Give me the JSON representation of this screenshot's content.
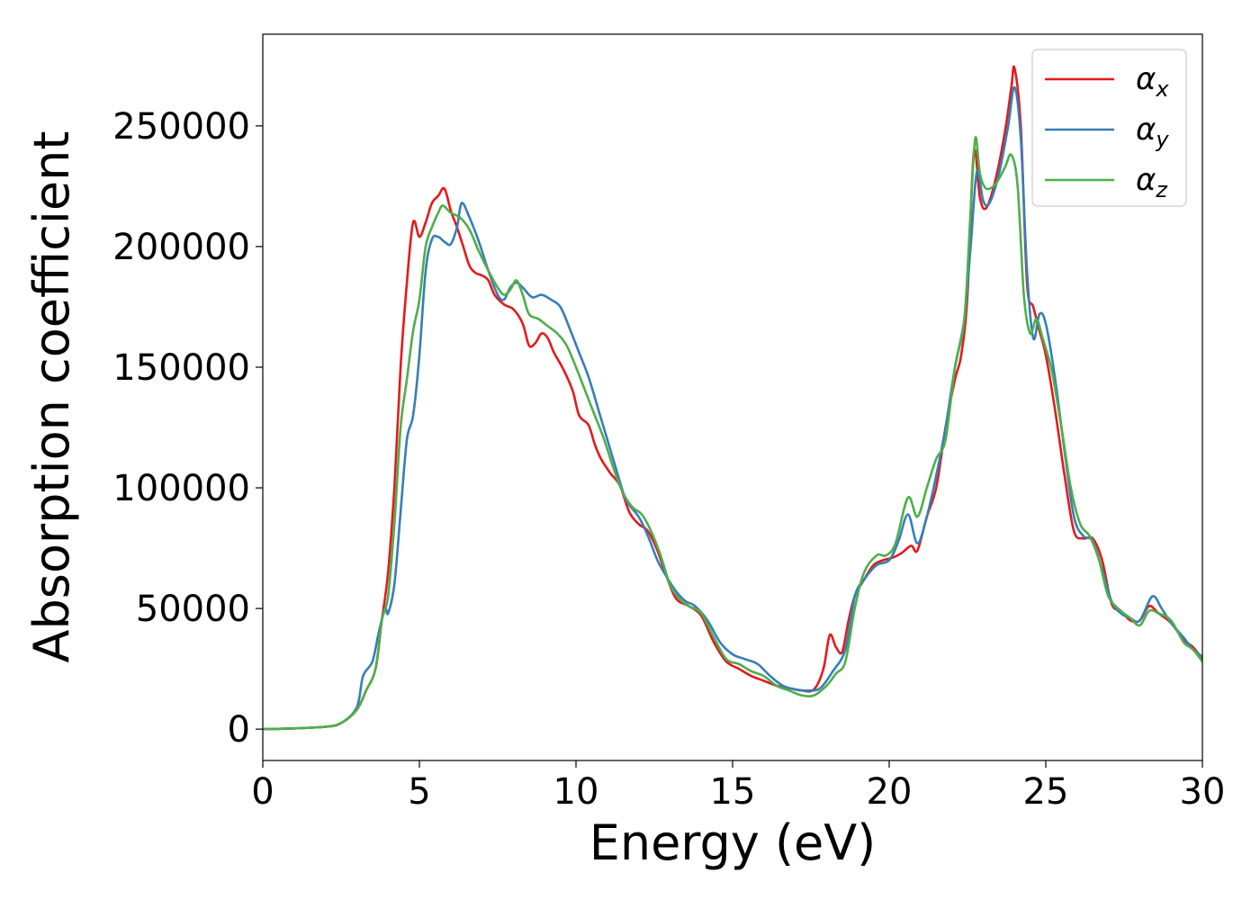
{
  "chart_data": {
    "type": "line",
    "xlabel": "Energy (eV)",
    "ylabel": "Absorption coefficient",
    "xlim": [
      0,
      30
    ],
    "ylim": [
      -13000,
      288000
    ],
    "xticks": [
      0,
      5,
      10,
      15,
      20,
      25,
      30
    ],
    "yticks": [
      0,
      50000,
      100000,
      150000,
      200000,
      250000
    ],
    "grid": false,
    "legend": "top-right",
    "series": [
      {
        "name": "α",
        "sub": "x",
        "color": "#e41a1c",
        "points": [
          [
            0,
            0
          ],
          [
            1,
            300
          ],
          [
            2,
            1000
          ],
          [
            2.5,
            2500
          ],
          [
            3,
            8000
          ],
          [
            3.3,
            16000
          ],
          [
            3.6,
            25000
          ],
          [
            3.8,
            45000
          ],
          [
            4.0,
            65000
          ],
          [
            4.2,
            100000
          ],
          [
            4.4,
            150000
          ],
          [
            4.6,
            185000
          ],
          [
            4.8,
            210000
          ],
          [
            5.0,
            204000
          ],
          [
            5.2,
            210000
          ],
          [
            5.4,
            218000
          ],
          [
            5.6,
            221000
          ],
          [
            5.8,
            224000
          ],
          [
            6.0,
            215000
          ],
          [
            6.2,
            208000
          ],
          [
            6.4,
            200000
          ],
          [
            6.6,
            192000
          ],
          [
            6.8,
            189000
          ],
          [
            7.0,
            188000
          ],
          [
            7.2,
            186000
          ],
          [
            7.4,
            180000
          ],
          [
            7.7,
            176000
          ],
          [
            8.0,
            174000
          ],
          [
            8.3,
            168000
          ],
          [
            8.5,
            159000
          ],
          [
            8.7,
            160000
          ],
          [
            8.9,
            164000
          ],
          [
            9.1,
            162000
          ],
          [
            9.3,
            156000
          ],
          [
            9.6,
            149000
          ],
          [
            9.9,
            140000
          ],
          [
            10.1,
            130000
          ],
          [
            10.4,
            126000
          ],
          [
            10.6,
            118000
          ],
          [
            10.8,
            112000
          ],
          [
            11.1,
            106000
          ],
          [
            11.4,
            101000
          ],
          [
            11.7,
            90000
          ],
          [
            12.0,
            85000
          ],
          [
            12.3,
            82000
          ],
          [
            12.6,
            74000
          ],
          [
            12.9,
            63000
          ],
          [
            13.2,
            54000
          ],
          [
            13.6,
            51000
          ],
          [
            14.0,
            47000
          ],
          [
            14.4,
            36000
          ],
          [
            14.8,
            28000
          ],
          [
            15.2,
            25000
          ],
          [
            15.6,
            22000
          ],
          [
            16.0,
            20000
          ],
          [
            16.4,
            18000
          ],
          [
            16.8,
            17000
          ],
          [
            17.2,
            16000
          ],
          [
            17.6,
            16500
          ],
          [
            17.9,
            25000
          ],
          [
            18.1,
            39000
          ],
          [
            18.3,
            34000
          ],
          [
            18.5,
            32000
          ],
          [
            18.7,
            45000
          ],
          [
            18.9,
            55000
          ],
          [
            19.2,
            62000
          ],
          [
            19.5,
            68000
          ],
          [
            19.8,
            70000
          ],
          [
            20.1,
            71000
          ],
          [
            20.4,
            73000
          ],
          [
            20.7,
            76000
          ],
          [
            20.9,
            74000
          ],
          [
            21.2,
            88000
          ],
          [
            21.5,
            100000
          ],
          [
            21.8,
            125000
          ],
          [
            22.1,
            145000
          ],
          [
            22.3,
            155000
          ],
          [
            22.5,
            180000
          ],
          [
            22.7,
            239000
          ],
          [
            22.9,
            220000
          ],
          [
            23.1,
            216000
          ],
          [
            23.4,
            228000
          ],
          [
            23.7,
            248000
          ],
          [
            23.9,
            266000
          ],
          [
            24.0,
            274000
          ],
          [
            24.2,
            250000
          ],
          [
            24.4,
            185000
          ],
          [
            24.6,
            175000
          ],
          [
            24.8,
            165000
          ],
          [
            25.0,
            155000
          ],
          [
            25.3,
            132000
          ],
          [
            25.6,
            105000
          ],
          [
            25.9,
            82000
          ],
          [
            26.2,
            79000
          ],
          [
            26.5,
            79000
          ],
          [
            26.8,
            70000
          ],
          [
            27.1,
            52000
          ],
          [
            27.4,
            49000
          ],
          [
            27.7,
            45000
          ],
          [
            28.0,
            45000
          ],
          [
            28.3,
            51000
          ],
          [
            28.6,
            48000
          ],
          [
            29.0,
            44000
          ],
          [
            29.4,
            37000
          ],
          [
            29.7,
            34000
          ],
          [
            30,
            29000
          ]
        ]
      },
      {
        "name": "α",
        "sub": "y",
        "color": "#377eb8",
        "points": [
          [
            0,
            0
          ],
          [
            1,
            300
          ],
          [
            2,
            1000
          ],
          [
            2.5,
            2500
          ],
          [
            3,
            9000
          ],
          [
            3.2,
            22000
          ],
          [
            3.5,
            28000
          ],
          [
            3.7,
            40000
          ],
          [
            3.9,
            50000
          ],
          [
            4.0,
            48000
          ],
          [
            4.2,
            60000
          ],
          [
            4.4,
            90000
          ],
          [
            4.6,
            120000
          ],
          [
            4.8,
            130000
          ],
          [
            5.0,
            155000
          ],
          [
            5.2,
            190000
          ],
          [
            5.4,
            203000
          ],
          [
            5.6,
            204000
          ],
          [
            5.8,
            202000
          ],
          [
            6.0,
            201000
          ],
          [
            6.2,
            208000
          ],
          [
            6.35,
            218000
          ],
          [
            6.6,
            212000
          ],
          [
            6.9,
            202000
          ],
          [
            7.2,
            190000
          ],
          [
            7.5,
            180000
          ],
          [
            7.7,
            178000
          ],
          [
            7.9,
            183000
          ],
          [
            8.1,
            185000
          ],
          [
            8.3,
            183000
          ],
          [
            8.6,
            179000
          ],
          [
            8.9,
            180000
          ],
          [
            9.2,
            178000
          ],
          [
            9.5,
            175000
          ],
          [
            9.8,
            166000
          ],
          [
            10.1,
            156000
          ],
          [
            10.4,
            146000
          ],
          [
            10.7,
            133000
          ],
          [
            11.0,
            120000
          ],
          [
            11.3,
            107000
          ],
          [
            11.6,
            95000
          ],
          [
            12.0,
            88000
          ],
          [
            12.3,
            80000
          ],
          [
            12.6,
            70000
          ],
          [
            12.9,
            63000
          ],
          [
            13.2,
            57000
          ],
          [
            13.5,
            53000
          ],
          [
            13.8,
            51000
          ],
          [
            14.2,
            45000
          ],
          [
            14.6,
            36000
          ],
          [
            15.0,
            31000
          ],
          [
            15.4,
            29000
          ],
          [
            15.8,
            27000
          ],
          [
            16.2,
            22000
          ],
          [
            16.6,
            18000
          ],
          [
            17.0,
            16500
          ],
          [
            17.4,
            16000
          ],
          [
            17.8,
            17000
          ],
          [
            18.2,
            24000
          ],
          [
            18.6,
            33000
          ],
          [
            18.9,
            55000
          ],
          [
            19.2,
            62000
          ],
          [
            19.6,
            68000
          ],
          [
            20.0,
            70000
          ],
          [
            20.3,
            78000
          ],
          [
            20.6,
            89000
          ],
          [
            20.9,
            77000
          ],
          [
            21.2,
            88000
          ],
          [
            21.5,
            105000
          ],
          [
            21.8,
            125000
          ],
          [
            22.1,
            150000
          ],
          [
            22.4,
            170000
          ],
          [
            22.6,
            200000
          ],
          [
            22.8,
            231000
          ],
          [
            23.0,
            219000
          ],
          [
            23.2,
            218000
          ],
          [
            23.5,
            230000
          ],
          [
            23.8,
            250000
          ],
          [
            24.0,
            266000
          ],
          [
            24.2,
            245000
          ],
          [
            24.4,
            190000
          ],
          [
            24.6,
            162000
          ],
          [
            24.8,
            172000
          ],
          [
            25.0,
            168000
          ],
          [
            25.3,
            145000
          ],
          [
            25.6,
            115000
          ],
          [
            25.9,
            88000
          ],
          [
            26.2,
            80000
          ],
          [
            26.5,
            78000
          ],
          [
            26.8,
            66000
          ],
          [
            27.1,
            53000
          ],
          [
            27.4,
            48000
          ],
          [
            27.7,
            46000
          ],
          [
            28.0,
            45000
          ],
          [
            28.4,
            55000
          ],
          [
            28.7,
            50000
          ],
          [
            29.0,
            44000
          ],
          [
            29.4,
            38000
          ],
          [
            29.7,
            33000
          ],
          [
            30,
            30000
          ]
        ]
      },
      {
        "name": "α",
        "sub": "z",
        "color": "#4daf4a",
        "points": [
          [
            0,
            0
          ],
          [
            1,
            300
          ],
          [
            2,
            1000
          ],
          [
            2.5,
            2500
          ],
          [
            3,
            8000
          ],
          [
            3.3,
            16000
          ],
          [
            3.6,
            25000
          ],
          [
            3.8,
            45000
          ],
          [
            4.0,
            55000
          ],
          [
            4.2,
            85000
          ],
          [
            4.4,
            125000
          ],
          [
            4.6,
            145000
          ],
          [
            4.8,
            165000
          ],
          [
            5.0,
            178000
          ],
          [
            5.2,
            200000
          ],
          [
            5.4,
            208000
          ],
          [
            5.6,
            214000
          ],
          [
            5.75,
            217000
          ],
          [
            6.0,
            214000
          ],
          [
            6.3,
            212000
          ],
          [
            6.6,
            207000
          ],
          [
            6.9,
            198000
          ],
          [
            7.2,
            190000
          ],
          [
            7.5,
            183000
          ],
          [
            7.7,
            180000
          ],
          [
            7.9,
            182000
          ],
          [
            8.1,
            186000
          ],
          [
            8.3,
            180000
          ],
          [
            8.5,
            172000
          ],
          [
            8.8,
            170000
          ],
          [
            9.1,
            167000
          ],
          [
            9.4,
            164000
          ],
          [
            9.7,
            159000
          ],
          [
            10.0,
            150000
          ],
          [
            10.3,
            140000
          ],
          [
            10.6,
            130000
          ],
          [
            10.9,
            120000
          ],
          [
            11.2,
            108000
          ],
          [
            11.5,
            98000
          ],
          [
            11.8,
            92000
          ],
          [
            12.1,
            89000
          ],
          [
            12.4,
            82000
          ],
          [
            12.7,
            72000
          ],
          [
            13.0,
            60000
          ],
          [
            13.3,
            54000
          ],
          [
            13.6,
            51000
          ],
          [
            14.0,
            48000
          ],
          [
            14.4,
            38000
          ],
          [
            14.8,
            29000
          ],
          [
            15.2,
            27000
          ],
          [
            15.6,
            24000
          ],
          [
            16.0,
            22000
          ],
          [
            16.4,
            18000
          ],
          [
            16.8,
            16000
          ],
          [
            17.2,
            14000
          ],
          [
            17.6,
            14000
          ],
          [
            18.0,
            18000
          ],
          [
            18.3,
            23000
          ],
          [
            18.6,
            28000
          ],
          [
            18.9,
            50000
          ],
          [
            19.2,
            65000
          ],
          [
            19.6,
            72000
          ],
          [
            19.9,
            72000
          ],
          [
            20.2,
            77000
          ],
          [
            20.6,
            96000
          ],
          [
            20.9,
            88000
          ],
          [
            21.2,
            100000
          ],
          [
            21.5,
            112000
          ],
          [
            21.8,
            120000
          ],
          [
            22.1,
            150000
          ],
          [
            22.4,
            170000
          ],
          [
            22.6,
            215000
          ],
          [
            22.75,
            245000
          ],
          [
            22.9,
            230000
          ],
          [
            23.1,
            224000
          ],
          [
            23.4,
            226000
          ],
          [
            23.7,
            233000
          ],
          [
            23.9,
            238000
          ],
          [
            24.1,
            225000
          ],
          [
            24.3,
            180000
          ],
          [
            24.5,
            164000
          ],
          [
            24.7,
            170000
          ],
          [
            24.9,
            162000
          ],
          [
            25.2,
            148000
          ],
          [
            25.5,
            125000
          ],
          [
            25.8,
            100000
          ],
          [
            26.1,
            85000
          ],
          [
            26.4,
            80000
          ],
          [
            26.7,
            70000
          ],
          [
            27.0,
            55000
          ],
          [
            27.4,
            49000
          ],
          [
            27.7,
            46000
          ],
          [
            28.0,
            43000
          ],
          [
            28.3,
            49000
          ],
          [
            28.6,
            48000
          ],
          [
            29.0,
            45000
          ],
          [
            29.4,
            36000
          ],
          [
            29.7,
            33000
          ],
          [
            30,
            28000
          ]
        ]
      }
    ]
  }
}
